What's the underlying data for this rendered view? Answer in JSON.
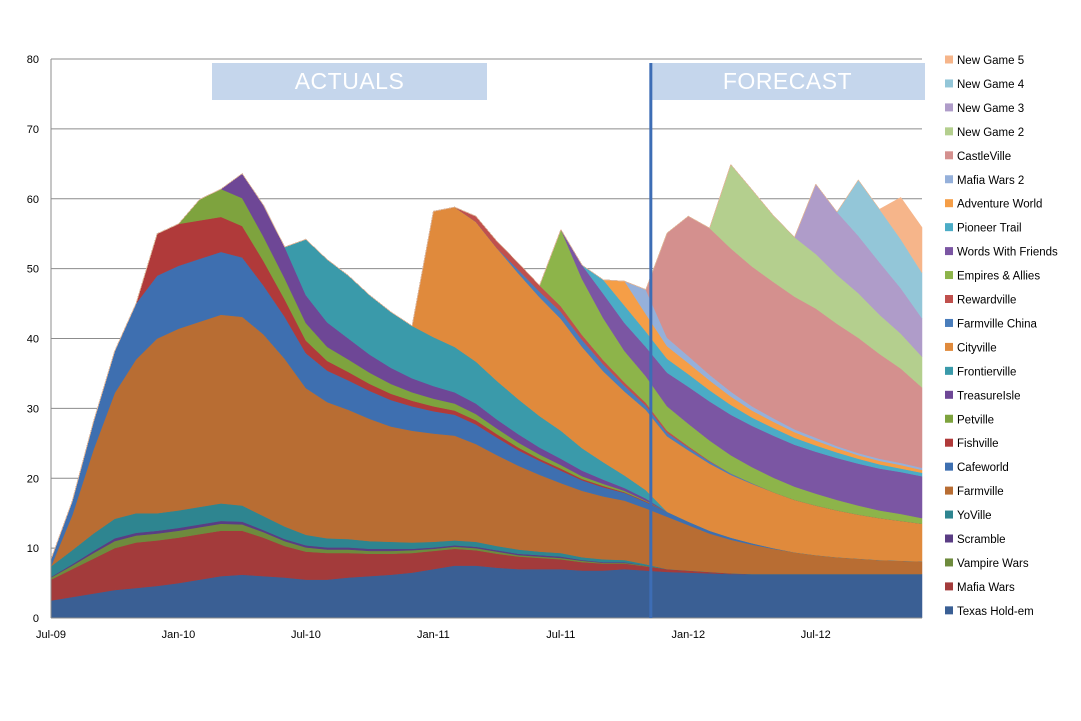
{
  "chart_data": {
    "type": "area",
    "stacked": true,
    "xlabel": "",
    "ylabel": "",
    "ylim": [
      0,
      80
    ],
    "yticks": [
      0,
      10,
      20,
      30,
      40,
      50,
      60,
      70,
      80
    ],
    "xlim": [
      "2009-07",
      "2012-12"
    ],
    "xtick_labels": [
      "Jul-09",
      "Jan-10",
      "Jul-10",
      "Jan-11",
      "Jul-11",
      "Jan-12",
      "Jul-12"
    ],
    "grid": true,
    "legend_position": "right",
    "annotations": {
      "actuals_label": "ACTUALS",
      "forecast_label": "FORECAST",
      "divider_date": "2011-11"
    },
    "x": [
      "2009-07",
      "2009-08",
      "2009-09",
      "2009-10",
      "2009-11",
      "2009-12",
      "2010-01",
      "2010-02",
      "2010-03",
      "2010-04",
      "2010-05",
      "2010-06",
      "2010-07",
      "2010-08",
      "2010-09",
      "2010-10",
      "2010-11",
      "2010-12",
      "2011-01",
      "2011-02",
      "2011-03",
      "2011-04",
      "2011-05",
      "2011-06",
      "2011-07",
      "2011-08",
      "2011-09",
      "2011-10",
      "2011-11",
      "2011-12",
      "2012-01",
      "2012-02",
      "2012-03",
      "2012-04",
      "2012-05",
      "2012-06",
      "2012-07",
      "2012-08",
      "2012-09",
      "2012-10",
      "2012-11",
      "2012-12"
    ],
    "series": [
      {
        "name": "Texas Hold-em",
        "color": "#3A5F94",
        "values": [
          2.5,
          3,
          3.5,
          4,
          4.3,
          4.6,
          5,
          5.5,
          6,
          6.2,
          6,
          5.8,
          5.5,
          5.5,
          5.8,
          6,
          6.2,
          6.5,
          7,
          7.5,
          7.5,
          7.2,
          7,
          7,
          7,
          6.8,
          6.8,
          7,
          6.8,
          6.6,
          6.5,
          6.4,
          6.3,
          6.3,
          6.3,
          6.3,
          6.3,
          6.3,
          6.3,
          6.3,
          6.3,
          6.3
        ]
      },
      {
        "name": "Mafia Wars",
        "color": "#A33B3B",
        "values": [
          3,
          4,
          5,
          6,
          6.5,
          6.5,
          6.5,
          6.5,
          6.5,
          6.3,
          5.5,
          4.5,
          4,
          3.8,
          3.5,
          3.2,
          3,
          2.8,
          2.6,
          2.4,
          2.2,
          2,
          1.8,
          1.6,
          1.4,
          1.2,
          1,
          0.8,
          0.6,
          0.4,
          0.3,
          0.2,
          0.1,
          0,
          0,
          0,
          0,
          0,
          0,
          0,
          0,
          0
        ]
      },
      {
        "name": "Vampire Wars",
        "color": "#6E8B3D",
        "values": [
          0.3,
          0.5,
          0.8,
          1,
          1,
          1,
          1,
          1,
          1,
          0.9,
          0.8,
          0.7,
          0.6,
          0.5,
          0.5,
          0.4,
          0.4,
          0.4,
          0.3,
          0.3,
          0.3,
          0.3,
          0.2,
          0.2,
          0.2,
          0.2,
          0.1,
          0.1,
          0.1,
          0,
          0,
          0,
          0,
          0,
          0,
          0,
          0,
          0,
          0,
          0,
          0,
          0
        ]
      },
      {
        "name": "Scramble",
        "color": "#5A3D84",
        "values": [
          0.1,
          0.2,
          0.3,
          0.4,
          0.4,
          0.4,
          0.4,
          0.4,
          0.4,
          0.4,
          0.3,
          0.3,
          0.3,
          0.3,
          0.3,
          0.3,
          0.3,
          0.2,
          0.2,
          0.2,
          0.2,
          0.2,
          0.2,
          0.2,
          0.2,
          0.1,
          0.1,
          0.1,
          0,
          0,
          0,
          0,
          0,
          0,
          0,
          0,
          0,
          0,
          0,
          0,
          0,
          0
        ]
      },
      {
        "name": "YoVille",
        "color": "#2E8590",
        "values": [
          1.5,
          2,
          2.5,
          2.8,
          2.8,
          2.5,
          2.5,
          2.5,
          2.5,
          2.3,
          2,
          1.8,
          1.5,
          1.3,
          1.2,
          1.1,
          1,
          0.9,
          0.8,
          0.7,
          0.7,
          0.6,
          0.6,
          0.5,
          0.5,
          0.4,
          0.4,
          0.3,
          0.2,
          0,
          0,
          0,
          0,
          0,
          0,
          0,
          0,
          0,
          0,
          0,
          0,
          0
        ]
      },
      {
        "name": "Farmville",
        "color": "#B86D33",
        "values": [
          0,
          5,
          12,
          18,
          22,
          25,
          26,
          26.5,
          27,
          27,
          26,
          24,
          21,
          19.5,
          18.5,
          17.5,
          16.5,
          16,
          15.5,
          15,
          14,
          13,
          12,
          11,
          10,
          9.5,
          9,
          8.5,
          8,
          7.5,
          6.5,
          5.5,
          4.8,
          4.2,
          3.6,
          3.1,
          2.7,
          2.4,
          2.2,
          2.0,
          1.9,
          1.8
        ]
      },
      {
        "name": "Cafeworld",
        "color": "#3E6FB0",
        "values": [
          1,
          2,
          4,
          6,
          8,
          9,
          9,
          9,
          9,
          8.5,
          7,
          6,
          5,
          4.5,
          4.2,
          4,
          3.8,
          3.5,
          3.2,
          3,
          2.8,
          2.5,
          2.2,
          2,
          1.8,
          1.5,
          1.3,
          1.1,
          0.9,
          0.7,
          0.5,
          0.4,
          0.3,
          0.2,
          0.1,
          0,
          0,
          0,
          0,
          0,
          0,
          0
        ]
      },
      {
        "name": "Fishville",
        "color": "#B03A3A",
        "values": [
          0,
          0,
          0,
          0,
          0,
          6,
          6,
          5.5,
          5,
          4.5,
          3.5,
          2.5,
          1.8,
          1.4,
          1.2,
          1,
          0.9,
          0.8,
          0.7,
          0.6,
          0.6,
          0.5,
          0.4,
          0.3,
          0.3,
          0.2,
          0.2,
          0.1,
          0.1,
          0,
          0,
          0,
          0,
          0,
          0,
          0,
          0,
          0,
          0,
          0,
          0,
          0
        ]
      },
      {
        "name": "Petville",
        "color": "#7EA33E",
        "values": [
          0,
          0,
          0,
          0,
          0,
          0,
          0,
          3,
          4,
          4,
          3.5,
          3,
          2.5,
          2,
          1.8,
          1.6,
          1.4,
          1.2,
          1.1,
          1,
          0.9,
          0.8,
          0.7,
          0.6,
          0.5,
          0.4,
          0.3,
          0.2,
          0.1,
          0,
          0,
          0,
          0,
          0,
          0,
          0,
          0,
          0,
          0,
          0,
          0,
          0
        ]
      },
      {
        "name": "TreasureIsle",
        "color": "#6E4796",
        "values": [
          0,
          0,
          0,
          0,
          0,
          0,
          0,
          0,
          0,
          3.5,
          4.5,
          4.5,
          4,
          3.5,
          3,
          2.6,
          2.3,
          2,
          1.8,
          1.6,
          1.5,
          1.3,
          1.2,
          1,
          0.9,
          0.8,
          0.6,
          0.4,
          0.3,
          0,
          0,
          0,
          0,
          0,
          0,
          0,
          0,
          0,
          0,
          0,
          0,
          0
        ]
      },
      {
        "name": "Frontierville",
        "color": "#3A9AAA",
        "values": [
          0,
          0,
          0,
          0,
          0,
          0,
          0,
          0,
          0,
          0,
          0,
          0,
          8,
          9,
          9,
          8.5,
          8,
          7.5,
          7,
          6.5,
          6,
          5.5,
          5,
          4.5,
          4,
          3.2,
          2.5,
          1.8,
          1.2,
          0,
          0,
          0,
          0,
          0,
          0,
          0,
          0,
          0,
          0,
          0,
          0,
          0
        ]
      },
      {
        "name": "Cityville",
        "color": "#E08A3C",
        "values": [
          0,
          0,
          0,
          0,
          0,
          0,
          0,
          0,
          0,
          0,
          0,
          0,
          0,
          0,
          0,
          0,
          0,
          0,
          18,
          20,
          20,
          19,
          18,
          17,
          16,
          14.5,
          13,
          12,
          11.5,
          10.8,
          10.2,
          9.6,
          9,
          8.5,
          8,
          7.5,
          7.1,
          6.7,
          6.3,
          6,
          5.7,
          5.4
        ]
      },
      {
        "name": "Farmville China",
        "color": "#4A7DBB",
        "values": [
          0,
          0,
          0,
          0,
          0,
          0,
          0,
          0,
          0,
          0,
          0,
          0,
          0,
          0,
          0,
          0,
          0,
          0,
          0,
          0,
          0,
          0,
          0.5,
          0.8,
          1,
          1,
          1,
          0.8,
          0.6,
          0.5,
          0.4,
          0.3,
          0.2,
          0.1,
          0,
          0,
          0,
          0,
          0,
          0,
          0,
          0
        ]
      },
      {
        "name": "Rewardville",
        "color": "#C0504D",
        "values": [
          0,
          0,
          0,
          0,
          0,
          0,
          0,
          0,
          0,
          0,
          0,
          0,
          0,
          0,
          0,
          0,
          0,
          0,
          0,
          0,
          0.8,
          1,
          1,
          0.9,
          0.8,
          0.7,
          0.6,
          0.5,
          0.4,
          0.3,
          0.2,
          0.1,
          0,
          0,
          0,
          0,
          0,
          0,
          0,
          0,
          0,
          0
        ]
      },
      {
        "name": "Empires & Allies",
        "color": "#8DB44A",
        "values": [
          0,
          0,
          0,
          0,
          0,
          0,
          0,
          0,
          0,
          0,
          0,
          0,
          0,
          0,
          0,
          0,
          0,
          0,
          0,
          0,
          0,
          0,
          0,
          0,
          11,
          8,
          6,
          4.5,
          3.8,
          3.5,
          3.2,
          2.9,
          2.6,
          2.3,
          2.1,
          1.9,
          1.7,
          1.5,
          1.3,
          1.1,
          1.0,
          0.8
        ]
      },
      {
        "name": "Words With Friends",
        "color": "#7B56A3",
        "values": [
          0,
          0,
          0,
          0,
          0,
          0,
          0,
          0,
          0,
          0,
          0,
          0,
          0,
          0,
          0,
          0,
          0,
          0,
          0,
          0,
          0,
          0,
          0,
          0,
          0,
          2,
          3.5,
          4,
          4.2,
          4.8,
          5.3,
          5.6,
          5.8,
          5.9,
          6,
          6,
          6,
          6,
          6,
          6,
          6,
          6
        ]
      },
      {
        "name": "Pioneer Trail",
        "color": "#4BACC6",
        "values": [
          0,
          0,
          0,
          0,
          0,
          0,
          0,
          0,
          0,
          0,
          0,
          0,
          0,
          0,
          0,
          0,
          0,
          0,
          0,
          0,
          0,
          0,
          0,
          0,
          0,
          0,
          2,
          2.5,
          2.2,
          2,
          1.8,
          1.6,
          1.4,
          1.2,
          1.1,
          1,
          0.9,
          0.8,
          0.7,
          0.6,
          0.5,
          0.5
        ]
      },
      {
        "name": "Adventure World",
        "color": "#F59E47",
        "values": [
          0,
          0,
          0,
          0,
          0,
          0,
          0,
          0,
          0,
          0,
          0,
          0,
          0,
          0,
          0,
          0,
          0,
          0,
          0,
          0,
          0,
          0,
          0,
          0,
          0,
          0,
          0,
          3.5,
          2.5,
          1.8,
          1.6,
          1.4,
          1.2,
          1,
          0.9,
          0.8,
          0.7,
          0.6,
          0.5,
          0.5,
          0.5,
          0.4
        ]
      },
      {
        "name": "Mafia Wars 2",
        "color": "#95B0DA",
        "values": [
          0,
          0,
          0,
          0,
          0,
          0,
          0,
          0,
          0,
          0,
          0,
          0,
          0,
          0,
          0,
          0,
          0,
          0,
          0,
          0,
          0,
          0,
          0,
          0,
          0,
          0,
          0,
          0,
          3.5,
          1.2,
          1,
          0.8,
          0.7,
          0.6,
          0.5,
          0.4,
          0.4,
          0.3,
          0.3,
          0.3,
          0.3,
          0.3
        ]
      },
      {
        "name": "CastleVille",
        "color": "#D4908E",
        "values": [
          0,
          0,
          0,
          0,
          0,
          0,
          0,
          0,
          0,
          0,
          0,
          0,
          0,
          0,
          0,
          0,
          0,
          0,
          0,
          0,
          0,
          0,
          0,
          0,
          0,
          0,
          0,
          0,
          0,
          15,
          20,
          21,
          20.5,
          20,
          19.5,
          19,
          18.5,
          17.5,
          16.5,
          15,
          13.5,
          11.5
        ]
      },
      {
        "name": "New Game 2",
        "color": "#B4CF8E",
        "values": [
          0,
          0,
          0,
          0,
          0,
          0,
          0,
          0,
          0,
          0,
          0,
          0,
          0,
          0,
          0,
          0,
          0,
          0,
          0,
          0,
          0,
          0,
          0,
          0,
          0,
          0,
          0,
          0,
          0,
          0,
          0,
          0,
          12,
          11,
          9.5,
          8.5,
          7.8,
          7,
          6.4,
          5.6,
          5,
          4.4
        ]
      },
      {
        "name": "New Game 3",
        "color": "#AF9CC9",
        "values": [
          0,
          0,
          0,
          0,
          0,
          0,
          0,
          0,
          0,
          0,
          0,
          0,
          0,
          0,
          0,
          0,
          0,
          0,
          0,
          0,
          0,
          0,
          0,
          0,
          0,
          0,
          0,
          0,
          0,
          0,
          0,
          0,
          0,
          0,
          0,
          0,
          10,
          9,
          8.2,
          7.5,
          6.5,
          5.5
        ]
      },
      {
        "name": "New Game 4",
        "color": "#93C6D8",
        "values": [
          0,
          0,
          0,
          0,
          0,
          0,
          0,
          0,
          0,
          0,
          0,
          0,
          0,
          0,
          0,
          0,
          0,
          0,
          0,
          0,
          0,
          0,
          0,
          0,
          0,
          0,
          0,
          0,
          0,
          0,
          0,
          0,
          0,
          0,
          0,
          0,
          0,
          0,
          8,
          7.6,
          7,
          6.5
        ]
      },
      {
        "name": "New Game 5",
        "color": "#F6B58A",
        "values": [
          0,
          0,
          0,
          0,
          0,
          0,
          0,
          0,
          0,
          0,
          0,
          0,
          0,
          0,
          0,
          0,
          0,
          0,
          0,
          0,
          0,
          0,
          0,
          0,
          0,
          0,
          0,
          0,
          0,
          0,
          0,
          0,
          0,
          0,
          0,
          0,
          0,
          0,
          0,
          0,
          6,
          6.5
        ]
      }
    ]
  }
}
